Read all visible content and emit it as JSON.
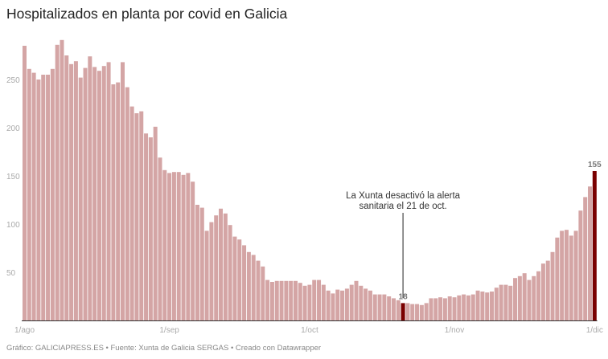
{
  "title": "Hospitalizados en planta por covid en Galicia",
  "footer": "Gráfico: GALICIAPRESS.ES • Fuente: Xunta de Galicia SERGAS • Creado con Datawrapper",
  "colors": {
    "bar": "#d4a5a5",
    "highlight": "#7a0000",
    "axis": "#333333"
  },
  "chart_data": {
    "type": "bar",
    "title": "Hospitalizados en planta por covid en Galicia",
    "start_date": "1/ago",
    "end_date": "1/dic",
    "x_ticks": [
      "1/ago",
      "1/sep",
      "1/oct",
      "1/nov",
      "1/dic"
    ],
    "y_ticks": [
      50,
      100,
      150,
      200,
      250
    ],
    "ylim": [
      0,
      300
    ],
    "grid": false,
    "values": [
      285,
      261,
      257,
      250,
      255,
      255,
      261,
      286,
      291,
      275,
      266,
      269,
      252,
      262,
      274,
      263,
      259,
      264,
      268,
      245,
      247,
      268,
      242,
      222,
      215,
      217,
      194,
      190,
      201,
      169,
      156,
      153,
      154,
      154,
      151,
      153,
      144,
      120,
      117,
      93,
      102,
      109,
      116,
      111,
      99,
      87,
      84,
      78,
      71,
      68,
      62,
      56,
      42,
      40,
      41,
      41,
      41,
      41,
      41,
      39,
      36,
      37,
      42,
      42,
      37,
      31,
      28,
      32,
      31,
      33,
      37,
      41,
      36,
      33,
      31,
      27,
      27,
      27,
      25,
      23,
      21,
      18,
      18,
      17,
      17,
      16,
      18,
      23,
      23,
      24,
      23,
      25,
      24,
      26,
      27,
      26,
      27,
      31,
      30,
      29,
      30,
      34,
      37,
      37,
      36,
      44,
      46,
      49,
      42,
      46,
      51,
      59,
      62,
      71,
      86,
      93,
      94,
      88,
      93,
      114,
      128,
      139,
      155
    ],
    "highlighted": [
      {
        "index": 81,
        "label": "18"
      },
      {
        "index": 122,
        "label": "155"
      }
    ],
    "annotation": {
      "line1": "La Xunta desactivó la alerta",
      "line2": "sanitaria el 21 de oct.",
      "index": 81
    }
  }
}
